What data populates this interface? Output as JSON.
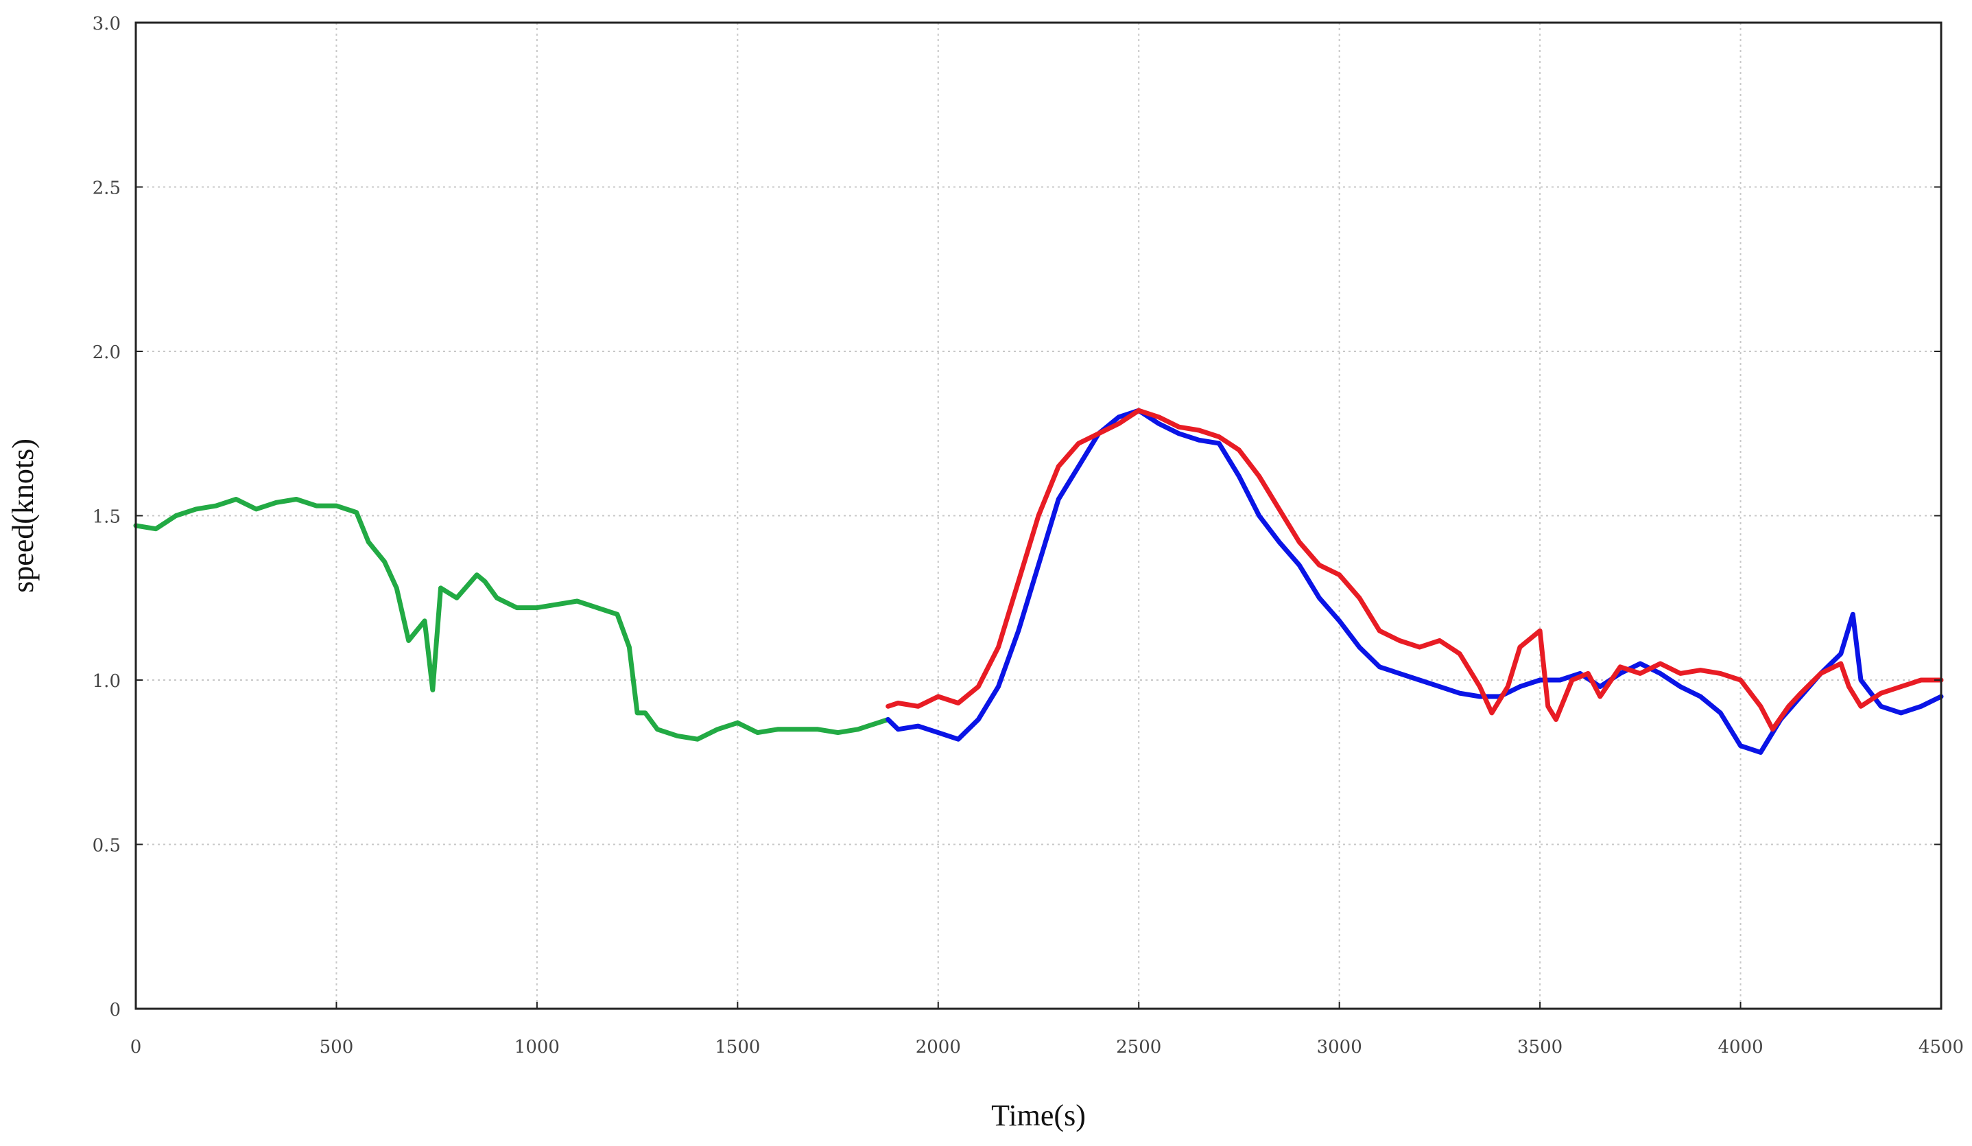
{
  "chart_data": {
    "type": "line",
    "xlabel": "Time(s)",
    "ylabel": "speed(knots)",
    "xlim": [
      0,
      4500
    ],
    "ylim": [
      0,
      3.0
    ],
    "x_ticks": [
      0,
      500,
      1000,
      1500,
      2000,
      2500,
      3000,
      3500,
      4000,
      4500
    ],
    "x_tick_labels": [
      "0",
      "500",
      "1000",
      "1500",
      "2000",
      "2500",
      "3000",
      "3500",
      "4000",
      "4500"
    ],
    "y_ticks": [
      0,
      0.5,
      1.0,
      1.5,
      2.0,
      2.5,
      3.0
    ],
    "y_tick_labels": [
      "0",
      "0.5",
      "1.0",
      "1.5",
      "2.0",
      "2.5",
      "3.0"
    ],
    "grid": true,
    "series": [
      {
        "color": "#22aa44",
        "x": [
          0,
          50,
          100,
          150,
          200,
          250,
          300,
          350,
          400,
          450,
          500,
          550,
          580,
          620,
          650,
          680,
          720,
          740,
          760,
          800,
          850,
          870,
          900,
          950,
          1000,
          1050,
          1100,
          1150,
          1200,
          1230,
          1250,
          1270,
          1300,
          1350,
          1400,
          1450,
          1500,
          1550,
          1600,
          1650,
          1700,
          1750,
          1800,
          1850,
          1875
        ],
        "y": [
          1.47,
          1.46,
          1.5,
          1.52,
          1.53,
          1.55,
          1.52,
          1.54,
          1.55,
          1.53,
          1.53,
          1.51,
          1.42,
          1.36,
          1.28,
          1.12,
          1.18,
          0.97,
          1.28,
          1.25,
          1.32,
          1.3,
          1.25,
          1.22,
          1.22,
          1.23,
          1.24,
          1.22,
          1.2,
          1.1,
          0.9,
          0.9,
          0.85,
          0.83,
          0.82,
          0.85,
          0.87,
          0.84,
          0.85,
          0.85,
          0.85,
          0.84,
          0.85,
          0.87,
          0.88
        ]
      },
      {
        "color": "#0a14e6",
        "x": [
          1875,
          1900,
          1950,
          2000,
          2050,
          2100,
          2150,
          2200,
          2250,
          2300,
          2350,
          2400,
          2450,
          2500,
          2550,
          2600,
          2650,
          2700,
          2750,
          2800,
          2850,
          2900,
          2950,
          3000,
          3050,
          3100,
          3150,
          3200,
          3250,
          3300,
          3350,
          3400,
          3450,
          3500,
          3550,
          3600,
          3650,
          3700,
          3750,
          3800,
          3850,
          3900,
          3950,
          4000,
          4050,
          4100,
          4150,
          4200,
          4250,
          4280,
          4300,
          4350,
          4400,
          4450,
          4500
        ],
        "y": [
          0.88,
          0.85,
          0.86,
          0.84,
          0.82,
          0.88,
          0.98,
          1.15,
          1.35,
          1.55,
          1.65,
          1.75,
          1.8,
          1.82,
          1.78,
          1.75,
          1.73,
          1.72,
          1.62,
          1.5,
          1.42,
          1.35,
          1.25,
          1.18,
          1.1,
          1.04,
          1.02,
          1.0,
          0.98,
          0.96,
          0.95,
          0.95,
          0.98,
          1.0,
          1.0,
          1.02,
          0.98,
          1.02,
          1.05,
          1.02,
          0.98,
          0.95,
          0.9,
          0.8,
          0.78,
          0.88,
          0.95,
          1.02,
          1.08,
          1.2,
          1.0,
          0.92,
          0.9,
          0.92,
          0.95
        ]
      },
      {
        "color": "#e81c24",
        "x": [
          1875,
          1900,
          1950,
          2000,
          2050,
          2100,
          2150,
          2200,
          2250,
          2300,
          2350,
          2400,
          2450,
          2500,
          2550,
          2600,
          2650,
          2700,
          2750,
          2800,
          2850,
          2900,
          2950,
          3000,
          3050,
          3100,
          3150,
          3200,
          3250,
          3300,
          3350,
          3380,
          3420,
          3450,
          3500,
          3520,
          3540,
          3580,
          3620,
          3650,
          3700,
          3750,
          3800,
          3850,
          3900,
          3950,
          4000,
          4050,
          4080,
          4120,
          4150,
          4200,
          4250,
          4270,
          4300,
          4350,
          4400,
          4450,
          4500
        ],
        "y": [
          0.92,
          0.93,
          0.92,
          0.95,
          0.93,
          0.98,
          1.1,
          1.3,
          1.5,
          1.65,
          1.72,
          1.75,
          1.78,
          1.82,
          1.8,
          1.77,
          1.76,
          1.74,
          1.7,
          1.62,
          1.52,
          1.42,
          1.35,
          1.32,
          1.25,
          1.15,
          1.12,
          1.1,
          1.12,
          1.08,
          0.98,
          0.9,
          0.98,
          1.1,
          1.15,
          0.92,
          0.88,
          1.0,
          1.02,
          0.95,
          1.04,
          1.02,
          1.05,
          1.02,
          1.03,
          1.02,
          1.0,
          0.92,
          0.85,
          0.92,
          0.96,
          1.02,
          1.05,
          0.98,
          0.92,
          0.96,
          0.98,
          1.0,
          1.0
        ]
      }
    ]
  }
}
